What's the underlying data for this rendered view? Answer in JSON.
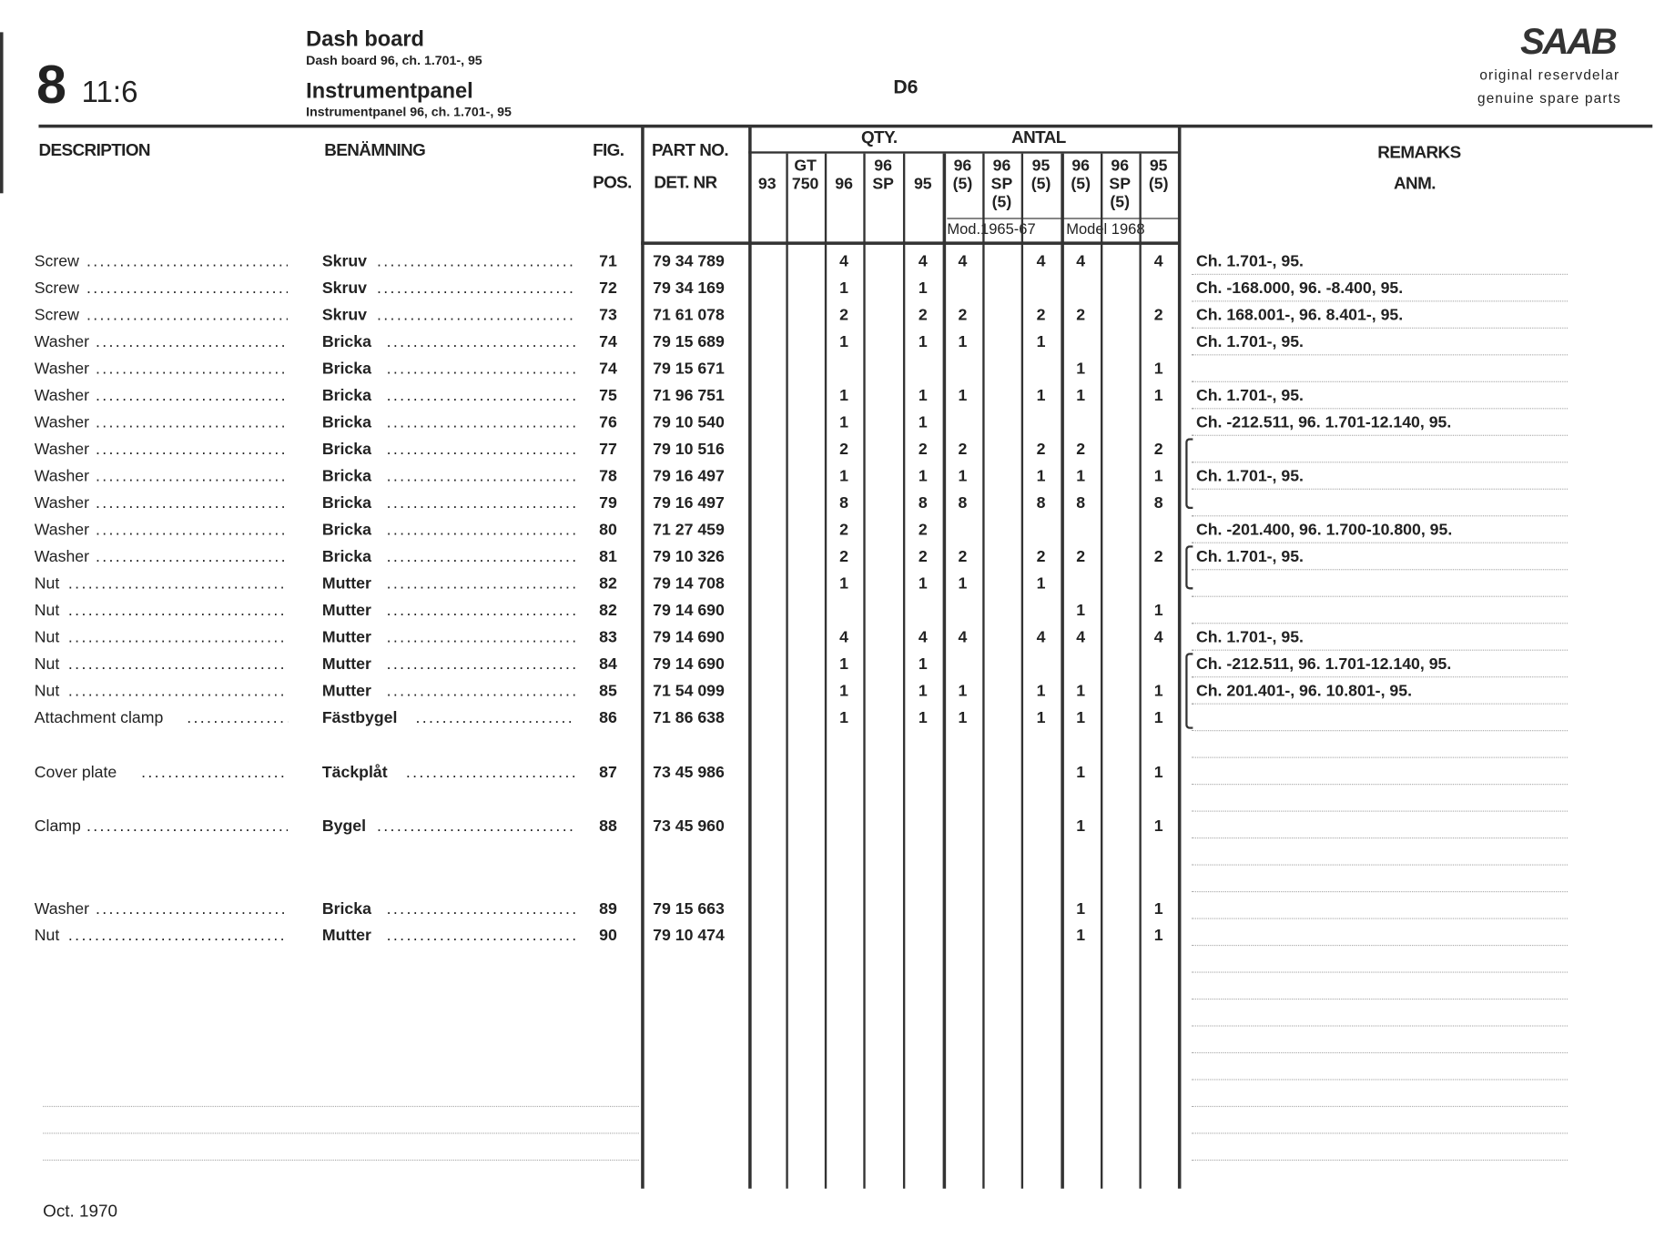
{
  "header": {
    "section_number": "8",
    "section_sub": "11:6",
    "title_en": "Dash board",
    "subtitle_en": "Dash board 96, ch. 1.701-, 95",
    "title_sv": "Instrumentpanel",
    "subtitle_sv": "Instrumentpanel 96, ch. 1.701-, 95",
    "figure_code": "D6",
    "brand": "SAAB",
    "brand_line1": "original reservdelar",
    "brand_line2": "genuine spare parts"
  },
  "columns": {
    "description": "DESCRIPTION",
    "benamning": "BENÄMNING",
    "fig": "FIG.",
    "pos": "POS.",
    "part_no": "PART NO.",
    "det_nr": "DET. NR",
    "qty": "QTY.",
    "antal": "ANTAL",
    "remarks": "REMARKS",
    "anm": "ANM.",
    "qty_cols": [
      "93",
      "GT 750",
      "96",
      "96 SP",
      "95",
      "96 (5)",
      "96 SP (5)",
      "95 (5)",
      "96 (5)",
      "96 SP (5)",
      "95 (5)"
    ],
    "group1": "Mod.1965-67",
    "group2": "Model 1968"
  },
  "rows": [
    {
      "desc": "Screw",
      "ben": "Skruv",
      "pos": "71",
      "part": "79 34 789",
      "qty": [
        "",
        "",
        "4",
        "",
        "4",
        "4",
        "",
        "4",
        "4",
        "",
        "4"
      ],
      "remark": "Ch. 1.701-, 95."
    },
    {
      "desc": "Screw",
      "ben": "Skruv",
      "pos": "72",
      "part": "79 34 169",
      "qty": [
        "",
        "",
        "1",
        "",
        "1",
        "",
        "",
        "",
        "",
        "",
        ""
      ],
      "remark": "Ch. -168.000, 96.  -8.400, 95."
    },
    {
      "desc": "Screw",
      "ben": "Skruv",
      "pos": "73",
      "part": "71 61 078",
      "qty": [
        "",
        "",
        "2",
        "",
        "2",
        "2",
        "",
        "2",
        "2",
        "",
        "2"
      ],
      "remark": "Ch. 168.001-, 96.  8.401-, 95."
    },
    {
      "desc": "Washer",
      "ben": "Bricka",
      "pos": "74",
      "part": "79 15 689",
      "qty": [
        "",
        "",
        "1",
        "",
        "1",
        "1",
        "",
        "1",
        "",
        "",
        ""
      ],
      "remark": "Ch. 1.701-, 95."
    },
    {
      "desc": "Washer",
      "ben": "Bricka",
      "pos": "74",
      "part": "79 15 671",
      "qty": [
        "",
        "",
        "",
        "",
        "",
        "",
        "",
        "",
        "1",
        "",
        "1"
      ],
      "remark": ""
    },
    {
      "desc": "Washer",
      "ben": "Bricka",
      "pos": "75",
      "part": "71 96 751",
      "qty": [
        "",
        "",
        "1",
        "",
        "1",
        "1",
        "",
        "1",
        "1",
        "",
        "1"
      ],
      "remark": "Ch. 1.701-, 95."
    },
    {
      "desc": "Washer",
      "ben": "Bricka",
      "pos": "76",
      "part": "79 10 540",
      "qty": [
        "",
        "",
        "1",
        "",
        "1",
        "",
        "",
        "",
        "",
        "",
        ""
      ],
      "remark": "Ch. -212.511, 96.  1.701-12.140, 95."
    },
    {
      "desc": "Washer",
      "ben": "Bricka",
      "pos": "77",
      "part": "79 10 516",
      "qty": [
        "",
        "",
        "2",
        "",
        "2",
        "2",
        "",
        "2",
        "2",
        "",
        "2"
      ],
      "remark": ""
    },
    {
      "desc": "Washer",
      "ben": "Bricka",
      "pos": "78",
      "part": "79 16 497",
      "qty": [
        "",
        "",
        "1",
        "",
        "1",
        "1",
        "",
        "1",
        "1",
        "",
        "1"
      ],
      "remark": "Ch. 1.701-, 95."
    },
    {
      "desc": "Washer",
      "ben": "Bricka",
      "pos": "79",
      "part": "79 16 497",
      "qty": [
        "",
        "",
        "8",
        "",
        "8",
        "8",
        "",
        "8",
        "8",
        "",
        "8"
      ],
      "remark": ""
    },
    {
      "desc": "Washer",
      "ben": "Bricka",
      "pos": "80",
      "part": "71 27 459",
      "qty": [
        "",
        "",
        "2",
        "",
        "2",
        "",
        "",
        "",
        "",
        "",
        ""
      ],
      "remark": "Ch. -201.400, 96.  1.700-10.800, 95."
    },
    {
      "desc": "Washer",
      "ben": "Bricka",
      "pos": "81",
      "part": "79 10 326",
      "qty": [
        "",
        "",
        "2",
        "",
        "2",
        "2",
        "",
        "2",
        "2",
        "",
        "2"
      ],
      "remark": "Ch. 1.701-, 95."
    },
    {
      "desc": "Nut",
      "ben": "Mutter",
      "pos": "82",
      "part": "79 14 708",
      "qty": [
        "",
        "",
        "1",
        "",
        "1",
        "1",
        "",
        "1",
        "",
        "",
        ""
      ],
      "remark": ""
    },
    {
      "desc": "Nut",
      "ben": "Mutter",
      "pos": "82",
      "part": "79 14 690",
      "qty": [
        "",
        "",
        "",
        "",
        "",
        "",
        "",
        "",
        "1",
        "",
        "1"
      ],
      "remark": ""
    },
    {
      "desc": "Nut",
      "ben": "Mutter",
      "pos": "83",
      "part": "79 14 690",
      "qty": [
        "",
        "",
        "4",
        "",
        "4",
        "4",
        "",
        "4",
        "4",
        "",
        "4"
      ],
      "remark": "Ch. 1.701-, 95."
    },
    {
      "desc": "Nut",
      "ben": "Mutter",
      "pos": "84",
      "part": "79 14 690",
      "qty": [
        "",
        "",
        "1",
        "",
        "1",
        "",
        "",
        "",
        "",
        "",
        ""
      ],
      "remark": "Ch. -212.511, 96.  1.701-12.140, 95."
    },
    {
      "desc": "Nut",
      "ben": "Mutter",
      "pos": "85",
      "part": "71 54 099",
      "qty": [
        "",
        "",
        "1",
        "",
        "1",
        "1",
        "",
        "1",
        "1",
        "",
        "1"
      ],
      "remark": "Ch. 201.401-, 96.  10.801-, 95."
    },
    {
      "desc": "Attachment clamp",
      "ben": "Fästbygel",
      "pos": "86",
      "part": "71 86 638",
      "qty": [
        "",
        "",
        "1",
        "",
        "1",
        "1",
        "",
        "1",
        "1",
        "",
        "1"
      ],
      "remark": ""
    },
    {
      "desc": "Cover plate",
      "ben": "Täckplåt",
      "pos": "87",
      "part": "73 45 986",
      "qty": [
        "",
        "",
        "",
        "",
        "",
        "",
        "",
        "",
        "1",
        "",
        "1"
      ],
      "remark": ""
    },
    {
      "desc": "Clamp",
      "ben": "Bygel",
      "pos": "88",
      "part": "73 45 960",
      "qty": [
        "",
        "",
        "",
        "",
        "",
        "",
        "",
        "",
        "1",
        "",
        "1"
      ],
      "remark": ""
    },
    {
      "desc": "Washer",
      "ben": "Bricka",
      "pos": "89",
      "part": "79 15 663",
      "qty": [
        "",
        "",
        "",
        "",
        "",
        "",
        "",
        "",
        "1",
        "",
        "1"
      ],
      "remark": ""
    },
    {
      "desc": "Nut",
      "ben": "Mutter",
      "pos": "90",
      "part": "79 10 474",
      "qty": [
        "",
        "",
        "",
        "",
        "",
        "",
        "",
        "",
        "1",
        "",
        "1"
      ],
      "remark": ""
    }
  ],
  "footer": {
    "date": "Oct. 1970"
  }
}
